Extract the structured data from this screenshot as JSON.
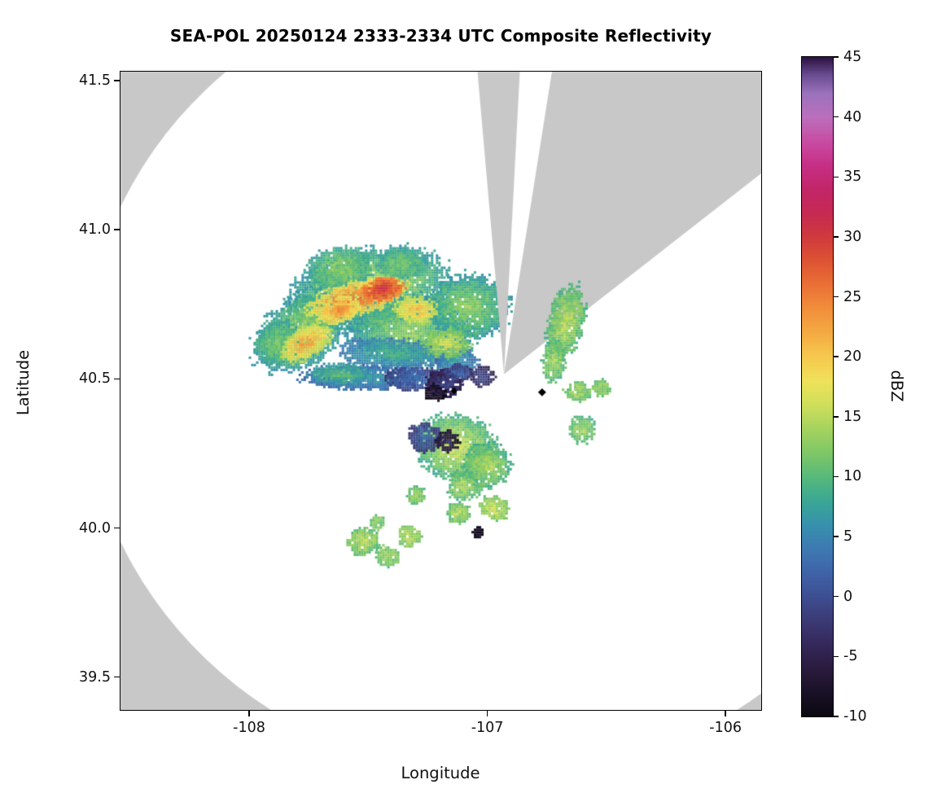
{
  "chart_data": {
    "type": "heatmap",
    "title": "SEA-POL 20250124 2333-2334 UTC Composite Reflectivity",
    "xlabel": "Longitude",
    "ylabel": "Latitude",
    "xlim": [
      -108.54,
      -105.85
    ],
    "ylim": [
      39.39,
      41.53
    ],
    "xticks": [
      {
        "v": -108,
        "label": "-108"
      },
      {
        "v": -107,
        "label": "-107"
      },
      {
        "v": -106,
        "label": "-106"
      }
    ],
    "yticks": [
      {
        "v": 41.5,
        "label": "41.5"
      },
      {
        "v": 41.0,
        "label": "41.0"
      },
      {
        "v": 40.5,
        "label": "40.5"
      },
      {
        "v": 40.0,
        "label": "40.0"
      },
      {
        "v": 39.5,
        "label": "39.5"
      }
    ],
    "colorbar": {
      "label": "dBZ",
      "min": -10,
      "max": 45,
      "ticks": [
        {
          "v": 45,
          "label": "45"
        },
        {
          "v": 40,
          "label": "40"
        },
        {
          "v": 35,
          "label": "35"
        },
        {
          "v": 30,
          "label": "30"
        },
        {
          "v": 25,
          "label": "25"
        },
        {
          "v": 20,
          "label": "20"
        },
        {
          "v": 15,
          "label": "15"
        },
        {
          "v": 10,
          "label": "10"
        },
        {
          "v": 5,
          "label": "5"
        },
        {
          "v": 0,
          "label": "0"
        },
        {
          "v": -5,
          "label": "-5"
        },
        {
          "v": -10,
          "label": "-10"
        }
      ]
    },
    "colors": {
      "figure_background": "#ffffff",
      "no_coverage_gray": "#c8c8c8",
      "coverage_white": "#ffffff",
      "axis_color": "#000000",
      "colormap_stops": [
        [
          -10,
          "#0a0810"
        ],
        [
          -8,
          "#191126"
        ],
        [
          -6,
          "#2a1b3e"
        ],
        [
          -4,
          "#35285a"
        ],
        [
          -2,
          "#3b3a74"
        ],
        [
          0,
          "#3e4e92"
        ],
        [
          2,
          "#3f63a8"
        ],
        [
          4,
          "#3e79b2"
        ],
        [
          6,
          "#3791ad"
        ],
        [
          8,
          "#3ba795"
        ],
        [
          10,
          "#57b97b"
        ],
        [
          12,
          "#7fc766"
        ],
        [
          14,
          "#a5d35f"
        ],
        [
          16,
          "#cfdf5b"
        ],
        [
          18,
          "#efe25a"
        ],
        [
          20,
          "#f6c94e"
        ],
        [
          22,
          "#f4ab43"
        ],
        [
          24,
          "#f18f3b"
        ],
        [
          26,
          "#ea7136"
        ],
        [
          28,
          "#de5433"
        ],
        [
          30,
          "#d03a3d"
        ],
        [
          32,
          "#c62a52"
        ],
        [
          34,
          "#c22568"
        ],
        [
          36,
          "#c62f85"
        ],
        [
          38,
          "#c84da4"
        ],
        [
          40,
          "#bb6fbc"
        ],
        [
          42,
          "#9b72bd"
        ],
        [
          43.5,
          "#6b4d93"
        ],
        [
          45,
          "#2c1340"
        ]
      ]
    },
    "radar": {
      "lon": -106.93,
      "lat": 40.515,
      "range_deg_lon": 1.77,
      "range_deg_lat": 1.35,
      "blocked_sectors_deg": [
        [
          -5,
          3.5
        ],
        [
          9,
          52
        ]
      ]
    },
    "markers": [
      {
        "lon": -106.77,
        "lat": 40.455,
        "shape": "diamond",
        "size": 7,
        "color": "#000000"
      },
      {
        "lon": -107.14,
        "lat": 40.46,
        "shape": "diamond",
        "size": 6,
        "color": "#000000"
      }
    ],
    "echo_fields": [
      "lon",
      "lat",
      "rx_deg",
      "ry_deg",
      "rot_deg",
      "core_dbz",
      "edge_dbz"
    ],
    "echoes_west": [
      [
        -107.5,
        40.8,
        0.34,
        0.13,
        -12,
        16,
        7
      ],
      [
        -107.78,
        40.66,
        0.22,
        0.11,
        -35,
        14,
        7
      ],
      [
        -107.32,
        40.66,
        0.26,
        0.12,
        8,
        13,
        7
      ],
      [
        -107.08,
        40.74,
        0.17,
        0.11,
        0,
        13,
        7
      ],
      [
        -107.88,
        40.62,
        0.1,
        0.07,
        -30,
        12,
        8
      ],
      [
        -107.62,
        40.87,
        0.14,
        0.07,
        -10,
        13,
        8
      ],
      [
        -107.36,
        40.885,
        0.1,
        0.055,
        0,
        12,
        8
      ],
      [
        -107.4,
        40.585,
        0.22,
        0.05,
        3,
        9,
        4
      ],
      [
        -107.13,
        40.56,
        0.09,
        0.045,
        0,
        7,
        3
      ],
      [
        -107.17,
        40.62,
        0.1,
        0.05,
        0,
        17,
        11
      ],
      [
        -107.3,
        40.73,
        0.09,
        0.045,
        5,
        21,
        15
      ],
      [
        -107.55,
        40.77,
        0.21,
        0.055,
        -14,
        27,
        17
      ],
      [
        -107.62,
        40.73,
        0.09,
        0.045,
        -20,
        24,
        17
      ],
      [
        -107.76,
        40.62,
        0.12,
        0.05,
        -30,
        23,
        15
      ],
      [
        -107.44,
        40.8,
        0.09,
        0.04,
        -12,
        31,
        24
      ],
      [
        -107.52,
        40.505,
        0.26,
        0.04,
        1,
        7,
        3
      ],
      [
        -107.62,
        40.515,
        0.13,
        0.035,
        0,
        11,
        6
      ],
      [
        -107.3,
        40.5,
        0.13,
        0.04,
        2,
        3,
        -1
      ],
      [
        -107.18,
        40.485,
        0.08,
        0.045,
        0,
        -1,
        -5
      ],
      [
        -107.22,
        40.455,
        0.05,
        0.03,
        0,
        -6,
        -9
      ],
      [
        -107.02,
        40.51,
        0.05,
        0.035,
        0,
        0,
        -4
      ],
      [
        -107.12,
        40.52,
        0.06,
        0.03,
        0,
        2,
        -2
      ]
    ],
    "echoes_east": [
      [
        -106.67,
        40.69,
        0.075,
        0.13,
        12,
        15,
        10
      ],
      [
        -106.72,
        40.56,
        0.05,
        0.07,
        5,
        14,
        10
      ],
      [
        -106.62,
        40.455,
        0.055,
        0.032,
        0,
        14,
        11
      ],
      [
        -106.52,
        40.47,
        0.04,
        0.028,
        0,
        13,
        11
      ],
      [
        -106.6,
        40.33,
        0.055,
        0.045,
        0,
        14,
        10
      ],
      [
        -107.13,
        40.27,
        0.17,
        0.11,
        15,
        16,
        9
      ],
      [
        -107.26,
        40.305,
        0.07,
        0.05,
        0,
        2,
        -2
      ],
      [
        -107.17,
        40.29,
        0.05,
        0.035,
        0,
        -4,
        -7
      ],
      [
        -107.0,
        40.21,
        0.1,
        0.075,
        -10,
        15,
        9
      ],
      [
        -107.1,
        40.14,
        0.07,
        0.05,
        0,
        14,
        10
      ],
      [
        -106.97,
        40.065,
        0.065,
        0.04,
        25,
        16,
        12
      ],
      [
        -107.12,
        40.05,
        0.05,
        0.035,
        0,
        15,
        11
      ],
      [
        -107.3,
        40.11,
        0.04,
        0.03,
        0,
        13,
        11
      ],
      [
        -107.52,
        39.955,
        0.07,
        0.045,
        -15,
        15,
        11
      ],
      [
        -107.42,
        39.905,
        0.05,
        0.035,
        0,
        14,
        11
      ],
      [
        -107.33,
        39.975,
        0.05,
        0.035,
        10,
        15,
        12
      ],
      [
        -107.46,
        40.02,
        0.03,
        0.025,
        0,
        13,
        11
      ],
      [
        -107.04,
        39.985,
        0.025,
        0.02,
        0,
        -8,
        -9
      ]
    ]
  }
}
